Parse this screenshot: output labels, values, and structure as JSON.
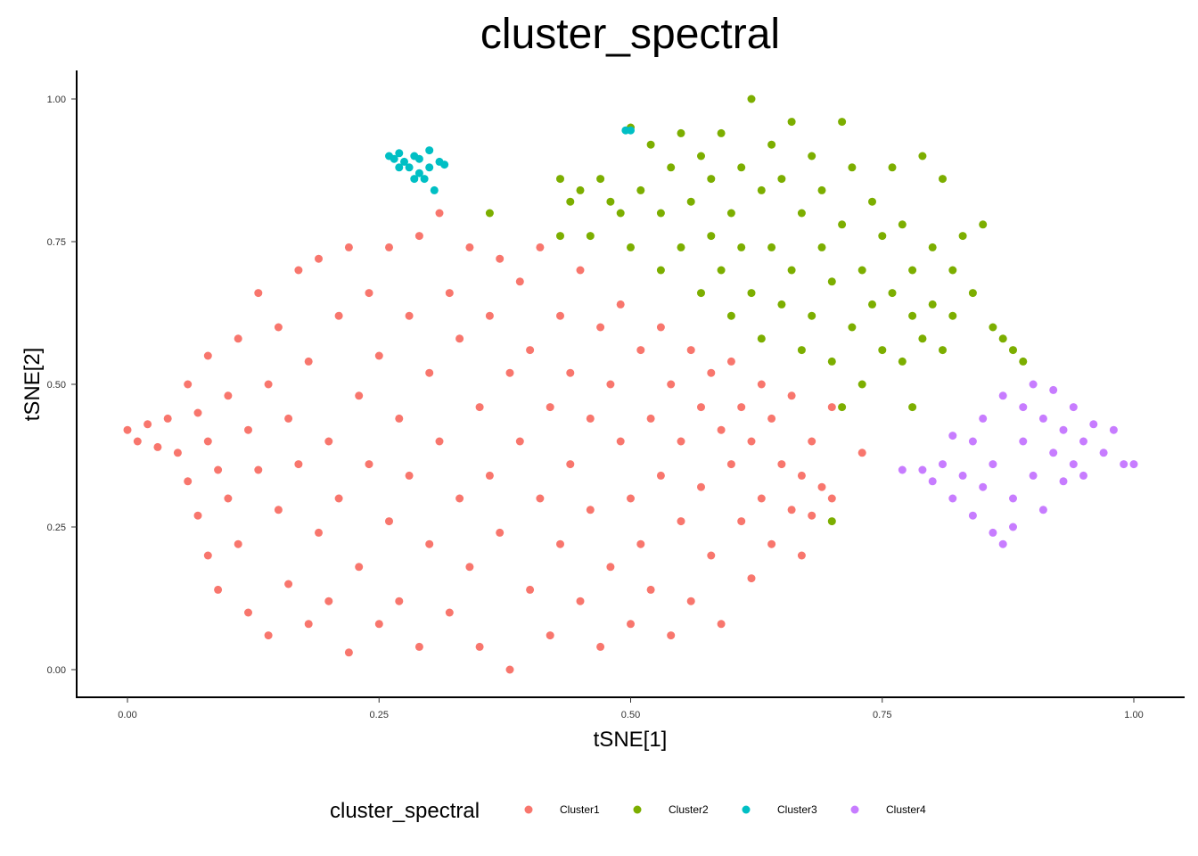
{
  "chart_data": {
    "type": "scatter",
    "title": "cluster_spectral",
    "xlabel": "tSNE[1]",
    "ylabel": "tSNE[2]",
    "xlim": [
      -0.05,
      1.05
    ],
    "ylim": [
      -0.05,
      1.05
    ],
    "xticks": [
      0.0,
      0.25,
      0.5,
      0.75,
      1.0
    ],
    "xtick_labels": [
      "0.00",
      "0.25",
      "0.50",
      "0.75",
      "1.00"
    ],
    "yticks": [
      0.0,
      0.25,
      0.5,
      0.75,
      1.0
    ],
    "ytick_labels": [
      "0.00",
      "0.25",
      "0.50",
      "0.75",
      "1.00"
    ],
    "grid": false,
    "legend": {
      "title": "cluster_spectral",
      "position": "bottom"
    },
    "series": [
      {
        "name": "Cluster1",
        "color": "#F8766D",
        "points": [
          [
            0.0,
            0.42
          ],
          [
            0.01,
            0.4
          ],
          [
            0.02,
            0.43
          ],
          [
            0.03,
            0.39
          ],
          [
            0.04,
            0.44
          ],
          [
            0.05,
            0.38
          ],
          [
            0.06,
            0.33
          ],
          [
            0.06,
            0.5
          ],
          [
            0.07,
            0.45
          ],
          [
            0.07,
            0.27
          ],
          [
            0.08,
            0.55
          ],
          [
            0.08,
            0.4
          ],
          [
            0.08,
            0.2
          ],
          [
            0.09,
            0.35
          ],
          [
            0.09,
            0.14
          ],
          [
            0.1,
            0.48
          ],
          [
            0.1,
            0.3
          ],
          [
            0.11,
            0.58
          ],
          [
            0.11,
            0.22
          ],
          [
            0.12,
            0.42
          ],
          [
            0.12,
            0.1
          ],
          [
            0.13,
            0.66
          ],
          [
            0.13,
            0.35
          ],
          [
            0.14,
            0.5
          ],
          [
            0.14,
            0.06
          ],
          [
            0.15,
            0.28
          ],
          [
            0.15,
            0.6
          ],
          [
            0.16,
            0.44
          ],
          [
            0.16,
            0.15
          ],
          [
            0.17,
            0.7
          ],
          [
            0.17,
            0.36
          ],
          [
            0.18,
            0.08
          ],
          [
            0.18,
            0.54
          ],
          [
            0.19,
            0.24
          ],
          [
            0.19,
            0.72
          ],
          [
            0.2,
            0.4
          ],
          [
            0.2,
            0.12
          ],
          [
            0.21,
            0.62
          ],
          [
            0.21,
            0.3
          ],
          [
            0.22,
            0.74
          ],
          [
            0.22,
            0.03
          ],
          [
            0.23,
            0.48
          ],
          [
            0.23,
            0.18
          ],
          [
            0.24,
            0.66
          ],
          [
            0.24,
            0.36
          ],
          [
            0.25,
            0.08
          ],
          [
            0.25,
            0.55
          ],
          [
            0.26,
            0.74
          ],
          [
            0.26,
            0.26
          ],
          [
            0.27,
            0.44
          ],
          [
            0.27,
            0.12
          ],
          [
            0.28,
            0.62
          ],
          [
            0.28,
            0.34
          ],
          [
            0.29,
            0.76
          ],
          [
            0.29,
            0.04
          ],
          [
            0.3,
            0.52
          ],
          [
            0.3,
            0.22
          ],
          [
            0.31,
            0.8
          ],
          [
            0.31,
            0.4
          ],
          [
            0.32,
            0.66
          ],
          [
            0.32,
            0.1
          ],
          [
            0.33,
            0.3
          ],
          [
            0.33,
            0.58
          ],
          [
            0.34,
            0.74
          ],
          [
            0.34,
            0.18
          ],
          [
            0.35,
            0.46
          ],
          [
            0.35,
            0.04
          ],
          [
            0.36,
            0.62
          ],
          [
            0.36,
            0.34
          ],
          [
            0.37,
            0.72
          ],
          [
            0.37,
            0.24
          ],
          [
            0.38,
            0.52
          ],
          [
            0.38,
            0.0
          ],
          [
            0.39,
            0.4
          ],
          [
            0.39,
            0.68
          ],
          [
            0.4,
            0.14
          ],
          [
            0.4,
            0.56
          ],
          [
            0.41,
            0.3
          ],
          [
            0.41,
            0.74
          ],
          [
            0.42,
            0.46
          ],
          [
            0.42,
            0.06
          ],
          [
            0.43,
            0.62
          ],
          [
            0.43,
            0.22
          ],
          [
            0.44,
            0.52
          ],
          [
            0.44,
            0.36
          ],
          [
            0.45,
            0.7
          ],
          [
            0.45,
            0.12
          ],
          [
            0.46,
            0.44
          ],
          [
            0.46,
            0.28
          ],
          [
            0.47,
            0.6
          ],
          [
            0.47,
            0.04
          ],
          [
            0.48,
            0.5
          ],
          [
            0.48,
            0.18
          ],
          [
            0.49,
            0.4
          ],
          [
            0.49,
            0.64
          ],
          [
            0.5,
            0.3
          ],
          [
            0.5,
            0.08
          ],
          [
            0.51,
            0.56
          ],
          [
            0.51,
            0.22
          ],
          [
            0.52,
            0.44
          ],
          [
            0.52,
            0.14
          ],
          [
            0.53,
            0.6
          ],
          [
            0.53,
            0.34
          ],
          [
            0.54,
            0.5
          ],
          [
            0.54,
            0.06
          ],
          [
            0.55,
            0.4
          ],
          [
            0.55,
            0.26
          ],
          [
            0.56,
            0.56
          ],
          [
            0.56,
            0.12
          ],
          [
            0.57,
            0.46
          ],
          [
            0.57,
            0.32
          ],
          [
            0.58,
            0.52
          ],
          [
            0.58,
            0.2
          ],
          [
            0.59,
            0.42
          ],
          [
            0.59,
            0.08
          ],
          [
            0.6,
            0.36
          ],
          [
            0.6,
            0.54
          ],
          [
            0.61,
            0.26
          ],
          [
            0.61,
            0.46
          ],
          [
            0.62,
            0.16
          ],
          [
            0.62,
            0.4
          ],
          [
            0.63,
            0.5
          ],
          [
            0.63,
            0.3
          ],
          [
            0.64,
            0.22
          ],
          [
            0.64,
            0.44
          ],
          [
            0.65,
            0.36
          ],
          [
            0.66,
            0.28
          ],
          [
            0.66,
            0.48
          ],
          [
            0.67,
            0.34
          ],
          [
            0.67,
            0.2
          ],
          [
            0.68,
            0.4
          ],
          [
            0.68,
            0.27
          ],
          [
            0.69,
            0.32
          ],
          [
            0.7,
            0.3
          ],
          [
            0.7,
            0.46
          ],
          [
            0.73,
            0.38
          ]
        ]
      },
      {
        "name": "Cluster2",
        "color": "#7CAE00",
        "points": [
          [
            0.36,
            0.8
          ],
          [
            0.43,
            0.76
          ],
          [
            0.43,
            0.86
          ],
          [
            0.44,
            0.82
          ],
          [
            0.45,
            0.84
          ],
          [
            0.46,
            0.76
          ],
          [
            0.47,
            0.86
          ],
          [
            0.48,
            0.82
          ],
          [
            0.49,
            0.8
          ],
          [
            0.5,
            0.74
          ],
          [
            0.5,
            0.95
          ],
          [
            0.51,
            0.84
          ],
          [
            0.52,
            0.92
          ],
          [
            0.53,
            0.7
          ],
          [
            0.53,
            0.8
          ],
          [
            0.54,
            0.88
          ],
          [
            0.55,
            0.74
          ],
          [
            0.55,
            0.94
          ],
          [
            0.56,
            0.82
          ],
          [
            0.57,
            0.66
          ],
          [
            0.57,
            0.9
          ],
          [
            0.58,
            0.76
          ],
          [
            0.58,
            0.86
          ],
          [
            0.59,
            0.7
          ],
          [
            0.59,
            0.94
          ],
          [
            0.6,
            0.8
          ],
          [
            0.6,
            0.62
          ],
          [
            0.61,
            0.88
          ],
          [
            0.61,
            0.74
          ],
          [
            0.62,
            1.0
          ],
          [
            0.62,
            0.66
          ],
          [
            0.63,
            0.84
          ],
          [
            0.63,
            0.58
          ],
          [
            0.64,
            0.92
          ],
          [
            0.64,
            0.74
          ],
          [
            0.65,
            0.64
          ],
          [
            0.65,
            0.86
          ],
          [
            0.66,
            0.96
          ],
          [
            0.66,
            0.7
          ],
          [
            0.67,
            0.56
          ],
          [
            0.67,
            0.8
          ],
          [
            0.68,
            0.9
          ],
          [
            0.68,
            0.62
          ],
          [
            0.69,
            0.74
          ],
          [
            0.69,
            0.84
          ],
          [
            0.7,
            0.54
          ],
          [
            0.7,
            0.68
          ],
          [
            0.71,
            0.96
          ],
          [
            0.71,
            0.78
          ],
          [
            0.72,
            0.6
          ],
          [
            0.72,
            0.88
          ],
          [
            0.73,
            0.7
          ],
          [
            0.73,
            0.5
          ],
          [
            0.74,
            0.82
          ],
          [
            0.74,
            0.64
          ],
          [
            0.75,
            0.56
          ],
          [
            0.75,
            0.76
          ],
          [
            0.76,
            0.88
          ],
          [
            0.76,
            0.66
          ],
          [
            0.77,
            0.54
          ],
          [
            0.77,
            0.78
          ],
          [
            0.78,
            0.62
          ],
          [
            0.78,
            0.7
          ],
          [
            0.79,
            0.9
          ],
          [
            0.79,
            0.58
          ],
          [
            0.8,
            0.74
          ],
          [
            0.8,
            0.64
          ],
          [
            0.81,
            0.86
          ],
          [
            0.81,
            0.56
          ],
          [
            0.82,
            0.7
          ],
          [
            0.82,
            0.62
          ],
          [
            0.83,
            0.76
          ],
          [
            0.84,
            0.66
          ],
          [
            0.85,
            0.78
          ],
          [
            0.86,
            0.6
          ],
          [
            0.87,
            0.58
          ],
          [
            0.88,
            0.56
          ],
          [
            0.89,
            0.54
          ],
          [
            0.7,
            0.26
          ],
          [
            0.71,
            0.46
          ],
          [
            0.78,
            0.46
          ]
        ]
      },
      {
        "name": "Cluster3",
        "color": "#00BFC4",
        "points": [
          [
            0.26,
            0.9
          ],
          [
            0.265,
            0.895
          ],
          [
            0.27,
            0.905
          ],
          [
            0.275,
            0.89
          ],
          [
            0.28,
            0.88
          ],
          [
            0.285,
            0.9
          ],
          [
            0.29,
            0.87
          ],
          [
            0.29,
            0.895
          ],
          [
            0.295,
            0.86
          ],
          [
            0.3,
            0.91
          ],
          [
            0.3,
            0.88
          ],
          [
            0.305,
            0.84
          ],
          [
            0.31,
            0.89
          ],
          [
            0.315,
            0.885
          ],
          [
            0.27,
            0.88
          ],
          [
            0.285,
            0.86
          ],
          [
            0.495,
            0.945
          ],
          [
            0.5,
            0.945
          ]
        ]
      },
      {
        "name": "Cluster4",
        "color": "#C77CFF",
        "points": [
          [
            0.77,
            0.35
          ],
          [
            0.79,
            0.35
          ],
          [
            0.8,
            0.33
          ],
          [
            0.81,
            0.36
          ],
          [
            0.82,
            0.3
          ],
          [
            0.82,
            0.41
          ],
          [
            0.83,
            0.34
          ],
          [
            0.84,
            0.27
          ],
          [
            0.84,
            0.4
          ],
          [
            0.85,
            0.32
          ],
          [
            0.85,
            0.44
          ],
          [
            0.86,
            0.24
          ],
          [
            0.86,
            0.36
          ],
          [
            0.87,
            0.22
          ],
          [
            0.87,
            0.48
          ],
          [
            0.88,
            0.3
          ],
          [
            0.88,
            0.25
          ],
          [
            0.89,
            0.4
          ],
          [
            0.89,
            0.46
          ],
          [
            0.9,
            0.34
          ],
          [
            0.9,
            0.5
          ],
          [
            0.91,
            0.28
          ],
          [
            0.91,
            0.44
          ],
          [
            0.92,
            0.38
          ],
          [
            0.92,
            0.49
          ],
          [
            0.93,
            0.33
          ],
          [
            0.93,
            0.42
          ],
          [
            0.94,
            0.46
          ],
          [
            0.94,
            0.36
          ],
          [
            0.95,
            0.4
          ],
          [
            0.95,
            0.34
          ],
          [
            0.96,
            0.43
          ],
          [
            0.97,
            0.38
          ],
          [
            0.98,
            0.42
          ],
          [
            0.99,
            0.36
          ],
          [
            1.0,
            0.36
          ]
        ]
      }
    ]
  }
}
